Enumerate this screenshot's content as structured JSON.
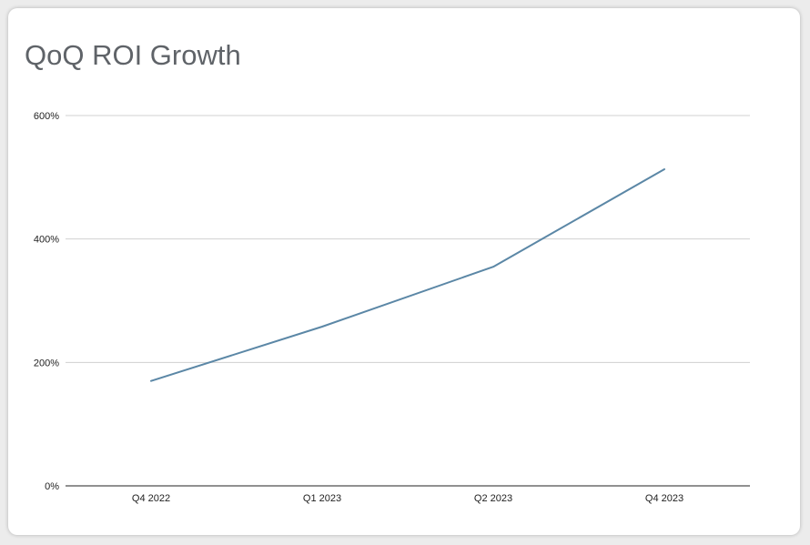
{
  "chart_data": {
    "type": "line",
    "title": "QoQ ROI Growth",
    "xlabel": "",
    "ylabel": "",
    "categories": [
      "Q4 2022",
      "Q1 2023",
      "Q2 2023",
      "Q4 2023"
    ],
    "series": [
      {
        "values": [
          170,
          258,
          355,
          513
        ]
      }
    ],
    "ylim": [
      0,
      600
    ],
    "yticks": [
      0,
      200,
      400,
      600
    ],
    "ytick_labels": [
      "0%",
      "200%",
      "400%",
      "600%"
    ],
    "grid": true,
    "legend": "none",
    "colors": {
      "line": "#5b87a6",
      "grid": "#d0d0d0",
      "baseline": "#222222",
      "title": "#5f6368"
    }
  }
}
